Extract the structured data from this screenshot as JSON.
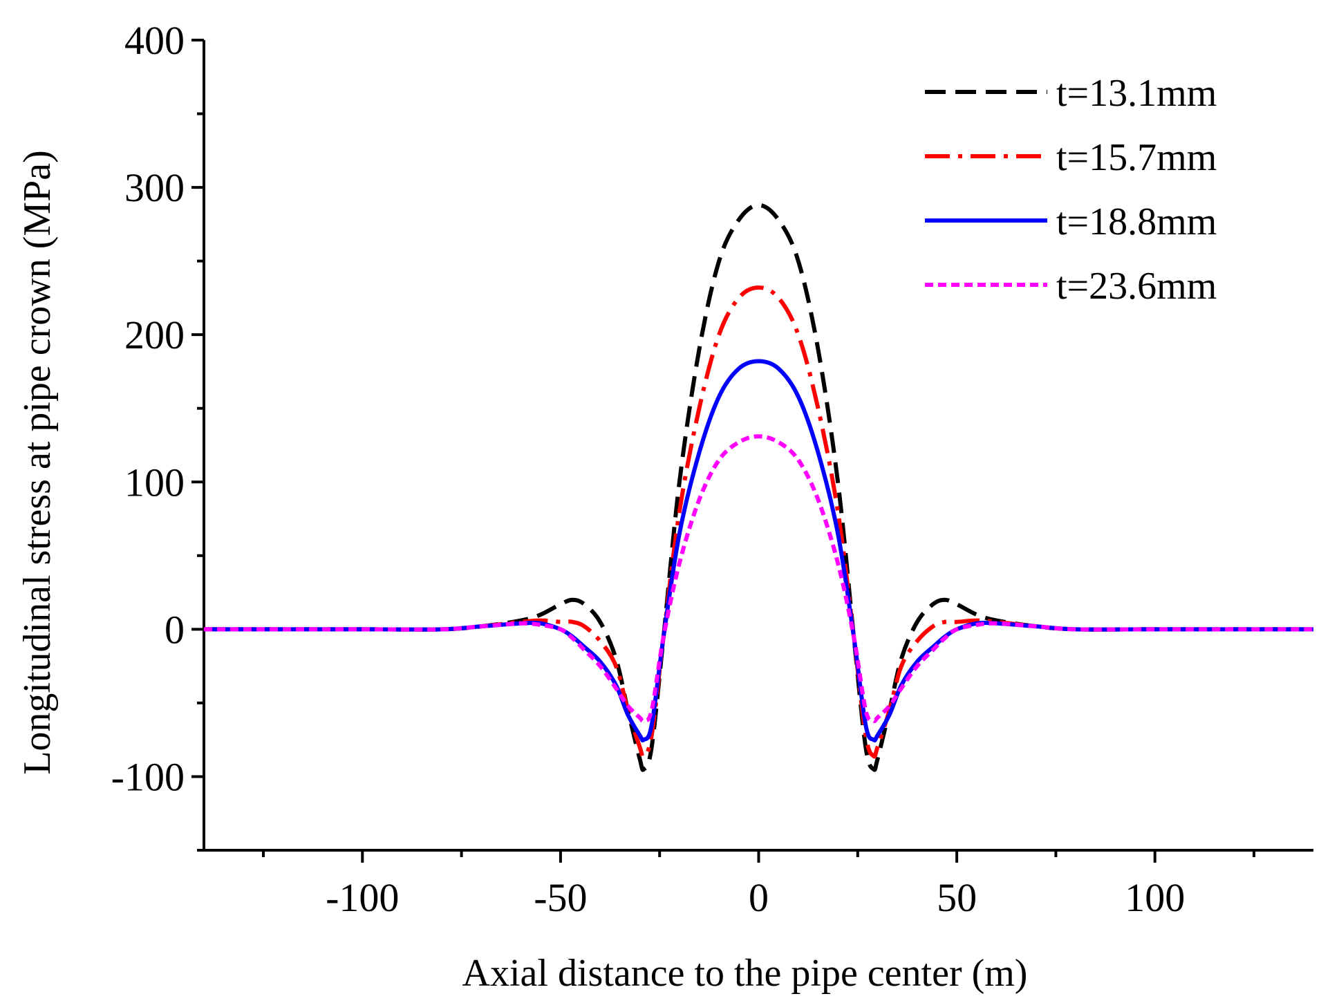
{
  "chart_data": {
    "type": "line",
    "title": "",
    "xlabel": "Axial distance to the pipe center (m)",
    "ylabel": "Longitudinal stress at pipe crown (MPa)",
    "xlim": [
      -140,
      140
    ],
    "ylim": [
      -150,
      400
    ],
    "x_major_ticks": [
      -100,
      -50,
      0,
      50,
      100
    ],
    "x_minor_ticks": [
      -125,
      -75,
      -25,
      25,
      75,
      125
    ],
    "x_tick_labels": [
      "-100",
      "-50",
      "0",
      "50",
      "100"
    ],
    "y_major_ticks": [
      -100,
      0,
      100,
      200,
      300,
      400
    ],
    "y_minor_ticks": [
      -150,
      -50,
      50,
      150,
      250,
      350
    ],
    "y_tick_labels": [
      "-100",
      "0",
      "100",
      "200",
      "300",
      "400"
    ],
    "legend_position": "top-right",
    "x": [
      -140,
      -100,
      -80,
      -70,
      -60,
      -55,
      -50,
      -47,
      -44,
      -40,
      -36,
      -33,
      -30,
      -29,
      -27,
      -24,
      -20,
      -15,
      -10,
      -5,
      0,
      5,
      10,
      15,
      20,
      24,
      27,
      29,
      30,
      33,
      36,
      40,
      44,
      47,
      50,
      55,
      60,
      70,
      80,
      100,
      140
    ],
    "series": [
      {
        "name": "t=13.1mm",
        "color": "#000000",
        "dash": "30 14",
        "values": [
          0,
          0,
          0,
          2,
          6,
          10,
          17,
          20,
          17,
          5,
          -20,
          -55,
          -88,
          -95,
          -80,
          -5,
          100,
          190,
          250,
          278,
          288,
          278,
          250,
          190,
          100,
          -5,
          -80,
          -95,
          -88,
          -55,
          -20,
          5,
          17,
          20,
          17,
          10,
          6,
          2,
          0,
          0,
          0
        ]
      },
      {
        "name": "t=15.7mm",
        "color": "#ff0000",
        "dash": "36 12 6 12",
        "values": [
          0,
          0,
          0,
          2,
          5,
          6,
          5,
          5,
          2,
          -8,
          -25,
          -55,
          -80,
          -86,
          -72,
          -5,
          80,
          150,
          200,
          225,
          232,
          225,
          200,
          150,
          80,
          -5,
          -72,
          -86,
          -80,
          -55,
          -25,
          -8,
          2,
          5,
          5,
          6,
          5,
          2,
          0,
          0,
          0
        ]
      },
      {
        "name": "t=18.8mm",
        "color": "#0000ff",
        "dash": "",
        "values": [
          0,
          0,
          0,
          2,
          4,
          4,
          0,
          -5,
          -12,
          -22,
          -38,
          -58,
          -72,
          -75,
          -65,
          -5,
          65,
          120,
          158,
          177,
          182,
          177,
          158,
          120,
          65,
          -5,
          -65,
          -75,
          -72,
          -58,
          -38,
          -22,
          -12,
          -5,
          0,
          4,
          4,
          2,
          0,
          0,
          0
        ]
      },
      {
        "name": "t=23.6mm",
        "color": "#ff00ff",
        "dash": "12 7",
        "values": [
          0,
          0,
          0,
          2,
          4,
          3,
          0,
          -6,
          -14,
          -25,
          -40,
          -52,
          -60,
          -62,
          -55,
          -5,
          45,
          88,
          115,
          127,
          131,
          127,
          115,
          88,
          45,
          -5,
          -55,
          -62,
          -60,
          -52,
          -40,
          -25,
          -14,
          -6,
          0,
          3,
          4,
          2,
          0,
          0,
          0
        ]
      }
    ]
  }
}
